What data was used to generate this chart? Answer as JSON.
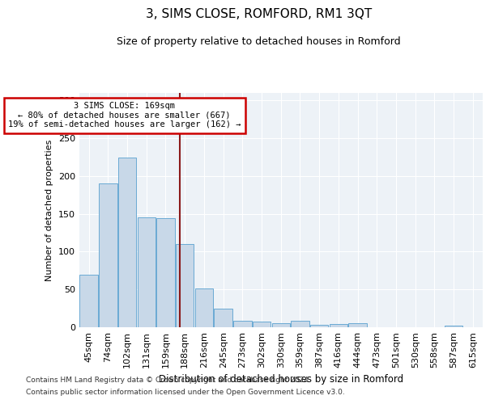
{
  "title": "3, SIMS CLOSE, ROMFORD, RM1 3QT",
  "subtitle": "Size of property relative to detached houses in Romford",
  "xlabel": "Distribution of detached houses by size in Romford",
  "ylabel": "Number of detached properties",
  "bar_color": "#c8d8e8",
  "bar_edge_color": "#6aaad4",
  "categories": [
    "45sqm",
    "74sqm",
    "102sqm",
    "131sqm",
    "159sqm",
    "188sqm",
    "216sqm",
    "245sqm",
    "273sqm",
    "302sqm",
    "330sqm",
    "359sqm",
    "387sqm",
    "416sqm",
    "444sqm",
    "473sqm",
    "501sqm",
    "530sqm",
    "558sqm",
    "587sqm",
    "615sqm"
  ],
  "values": [
    70,
    190,
    224,
    145,
    144,
    110,
    51,
    25,
    9,
    8,
    5,
    9,
    3,
    4,
    5,
    0,
    0,
    0,
    0,
    2,
    0
  ],
  "ylim": [
    0,
    310
  ],
  "yticks": [
    0,
    50,
    100,
    150,
    200,
    250,
    300
  ],
  "vline_x": 4.72,
  "annotation_text_line1": "3 SIMS CLOSE: 169sqm",
  "annotation_text_line2": "← 80% of detached houses are smaller (667)",
  "annotation_text_line3": "19% of semi-detached houses are larger (162) →",
  "annotation_box_color": "#ffffff",
  "annotation_border_color": "#cc0000",
  "vline_color": "#8b1a1a",
  "background_color": "#edf2f7",
  "grid_color": "#ffffff",
  "title_fontsize": 11,
  "subtitle_fontsize": 9,
  "footer_line1": "Contains HM Land Registry data © Crown copyright and database right 2024.",
  "footer_line2": "Contains public sector information licensed under the Open Government Licence v3.0."
}
